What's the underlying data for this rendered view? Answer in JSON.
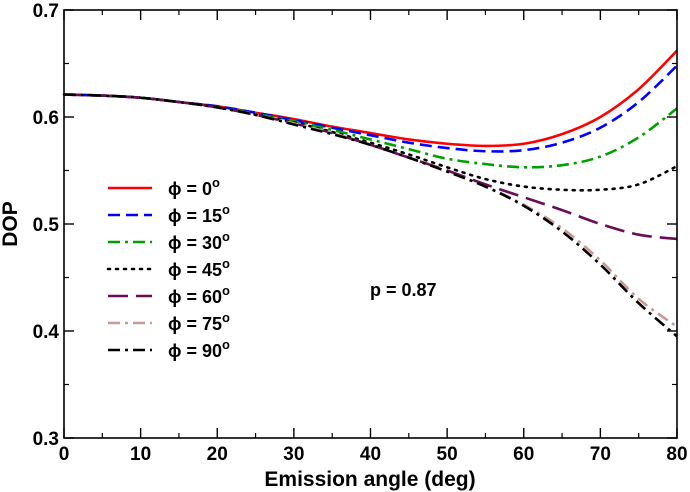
{
  "chart_data": {
    "type": "line",
    "title": "",
    "xlabel": "Emission angle (deg)",
    "ylabel": "DOP",
    "xlim": [
      0,
      80
    ],
    "ylim": [
      0.3,
      0.7
    ],
    "xticks": [
      0,
      10,
      20,
      30,
      40,
      50,
      60,
      70,
      80
    ],
    "yticks": [
      0.3,
      0.4,
      0.5,
      0.6,
      0.7
    ],
    "xtick_labels": [
      "0",
      "10",
      "20",
      "30",
      "40",
      "50",
      "60",
      "70",
      "80"
    ],
    "ytick_labels": [
      "0.3",
      "0.4",
      "0.5",
      "0.6",
      "0.7"
    ],
    "grid": false,
    "legend_position": "left-middle",
    "annotation": "p = 0.87",
    "x": [
      0,
      5,
      10,
      15,
      20,
      25,
      30,
      35,
      40,
      45,
      50,
      55,
      60,
      65,
      70,
      75,
      80
    ],
    "series": [
      {
        "name": "φ = 0°",
        "legend_label": "ϕ = 0",
        "degree_sign": "o",
        "color": "#ff0000",
        "dash": "solid",
        "values": [
          0.621,
          0.62,
          0.618,
          0.614,
          0.61,
          0.604,
          0.598,
          0.591,
          0.585,
          0.579,
          0.575,
          0.573,
          0.575,
          0.584,
          0.6,
          0.626,
          0.662
        ]
      },
      {
        "name": "φ = 15°",
        "legend_label": "ϕ = 15",
        "degree_sign": "o",
        "color": "#0000ff",
        "dash": "dashed",
        "values": [
          0.621,
          0.62,
          0.618,
          0.614,
          0.61,
          0.604,
          0.597,
          0.59,
          0.583,
          0.576,
          0.571,
          0.568,
          0.569,
          0.576,
          0.59,
          0.614,
          0.648
        ]
      },
      {
        "name": "φ = 30°",
        "legend_label": "ϕ = 30",
        "degree_sign": "o",
        "color": "#00a000",
        "dash": "dashdot",
        "values": [
          0.621,
          0.62,
          0.618,
          0.614,
          0.609,
          0.603,
          0.596,
          0.588,
          0.579,
          0.57,
          0.561,
          0.556,
          0.553,
          0.555,
          0.563,
          0.581,
          0.608
        ]
      },
      {
        "name": "φ = 45°",
        "legend_label": "ϕ = 45",
        "degree_sign": "o",
        "color": "#000000",
        "dash": "dotted",
        "values": [
          0.621,
          0.62,
          0.618,
          0.614,
          0.609,
          0.602,
          0.595,
          0.586,
          0.576,
          0.565,
          0.553,
          0.542,
          0.535,
          0.532,
          0.532,
          0.537,
          0.554
        ]
      },
      {
        "name": "φ = 60°",
        "legend_label": "ϕ = 60",
        "degree_sign": "o",
        "color": "#6a0d56",
        "dash": "longdash",
        "values": [
          0.621,
          0.62,
          0.618,
          0.614,
          0.609,
          0.602,
          0.594,
          0.585,
          0.574,
          0.562,
          0.55,
          0.537,
          0.525,
          0.513,
          0.5,
          0.49,
          0.486
        ]
      },
      {
        "name": "φ = 75°",
        "legend_label": "ϕ = 75",
        "degree_sign": "o",
        "color": "#c79a94",
        "dash": "dashdot",
        "values": [
          0.621,
          0.62,
          0.618,
          0.614,
          0.609,
          0.602,
          0.594,
          0.585,
          0.574,
          0.562,
          0.549,
          0.535,
          0.518,
          0.496,
          0.466,
          0.43,
          0.404
        ]
      },
      {
        "name": "φ = 90°",
        "legend_label": "ϕ = 90",
        "degree_sign": "o",
        "color": "#000000",
        "dash": "dashdot",
        "values": [
          0.621,
          0.62,
          0.618,
          0.614,
          0.609,
          0.602,
          0.593,
          0.584,
          0.574,
          0.562,
          0.549,
          0.535,
          0.517,
          0.493,
          0.462,
          0.426,
          0.395
        ]
      }
    ]
  }
}
